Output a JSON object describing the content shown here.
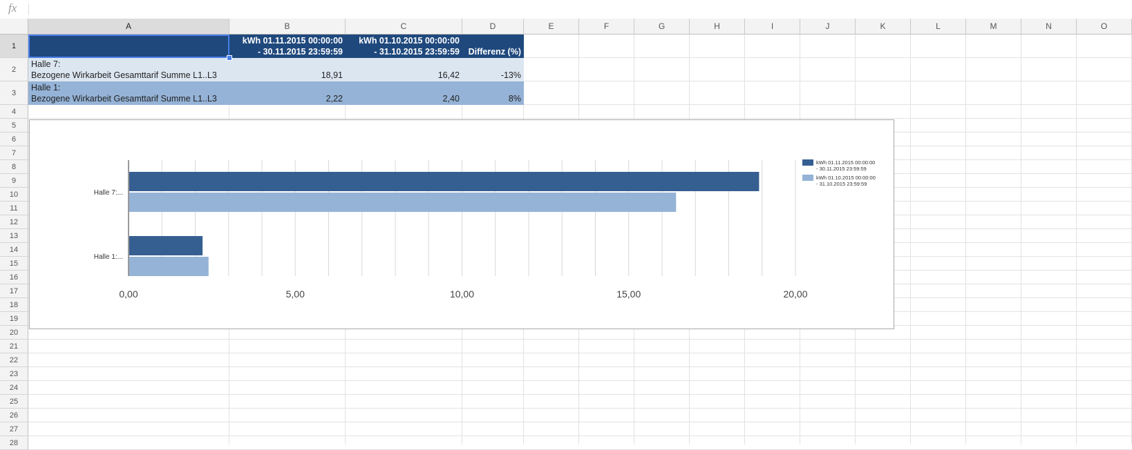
{
  "formula_bar": {
    "icon": "fx",
    "value": ""
  },
  "columns": [
    "A",
    "B",
    "C",
    "D",
    "E",
    "F",
    "G",
    "H",
    "I",
    "J",
    "K",
    "L",
    "M",
    "N",
    "O"
  ],
  "rows": [
    "1",
    "2",
    "3",
    "4",
    "5",
    "6",
    "7",
    "8",
    "9",
    "10",
    "11",
    "12",
    "13",
    "14",
    "15",
    "16",
    "17",
    "18",
    "19",
    "20",
    "21",
    "22",
    "23",
    "24",
    "25",
    "26",
    "27",
    "28"
  ],
  "table": {
    "header": {
      "a": "",
      "b": "kWh 01.11.2015 00:00:00\n- 30.11.2015 23:59:59",
      "c": "kWh 01.10.2015 00:00:00\n- 31.10.2015 23:59:59",
      "d": "Differenz (%)"
    },
    "rows": [
      {
        "label": "Halle 7:\nBezogene Wirkarbeit Gesamttarif Summe L1..L3",
        "b": "18,91",
        "c": "16,42",
        "d": "-13%"
      },
      {
        "label": "Halle 1:\nBezogene Wirkarbeit Gesamttarif Summe L1..L3",
        "b": "2,22",
        "c": "2,40",
        "d": "8%"
      }
    ]
  },
  "colors": {
    "header_fill": "#1f497d",
    "row2_fill": "#dce6f1",
    "row3_fill": "#95b3d7",
    "selection": "#4a7ee8",
    "series1": "#365f91",
    "series2": "#95b3d7"
  },
  "chart_data": {
    "type": "bar",
    "orientation": "horizontal",
    "categories": [
      "Halle 7:...",
      "Halle 1:..."
    ],
    "series": [
      {
        "name": "kWh 01.11.2015 00:00:00 - 30.11.2015 23:59:59",
        "values": [
          18.91,
          2.22
        ]
      },
      {
        "name": "kWh 01.10.2015 00:00:00 - 31.10.2015 23:59:59",
        "values": [
          16.42,
          2.4
        ]
      }
    ],
    "legend_lines": [
      [
        "kWh 01.11.2015 00:00:00",
        "- 30.11.2015 23:59:59"
      ],
      [
        "kWh 01.10.2015 00:00:00",
        "- 31.10.2015 23:59:59"
      ]
    ],
    "xlim": [
      0,
      20
    ],
    "x_ticks": [
      0,
      5,
      10,
      15,
      20
    ],
    "x_tick_labels": [
      "0,00",
      "5,00",
      "10,00",
      "15,00",
      "20,00"
    ],
    "grid": true,
    "legend_position": "right",
    "title": "",
    "xlabel": "",
    "ylabel": ""
  }
}
